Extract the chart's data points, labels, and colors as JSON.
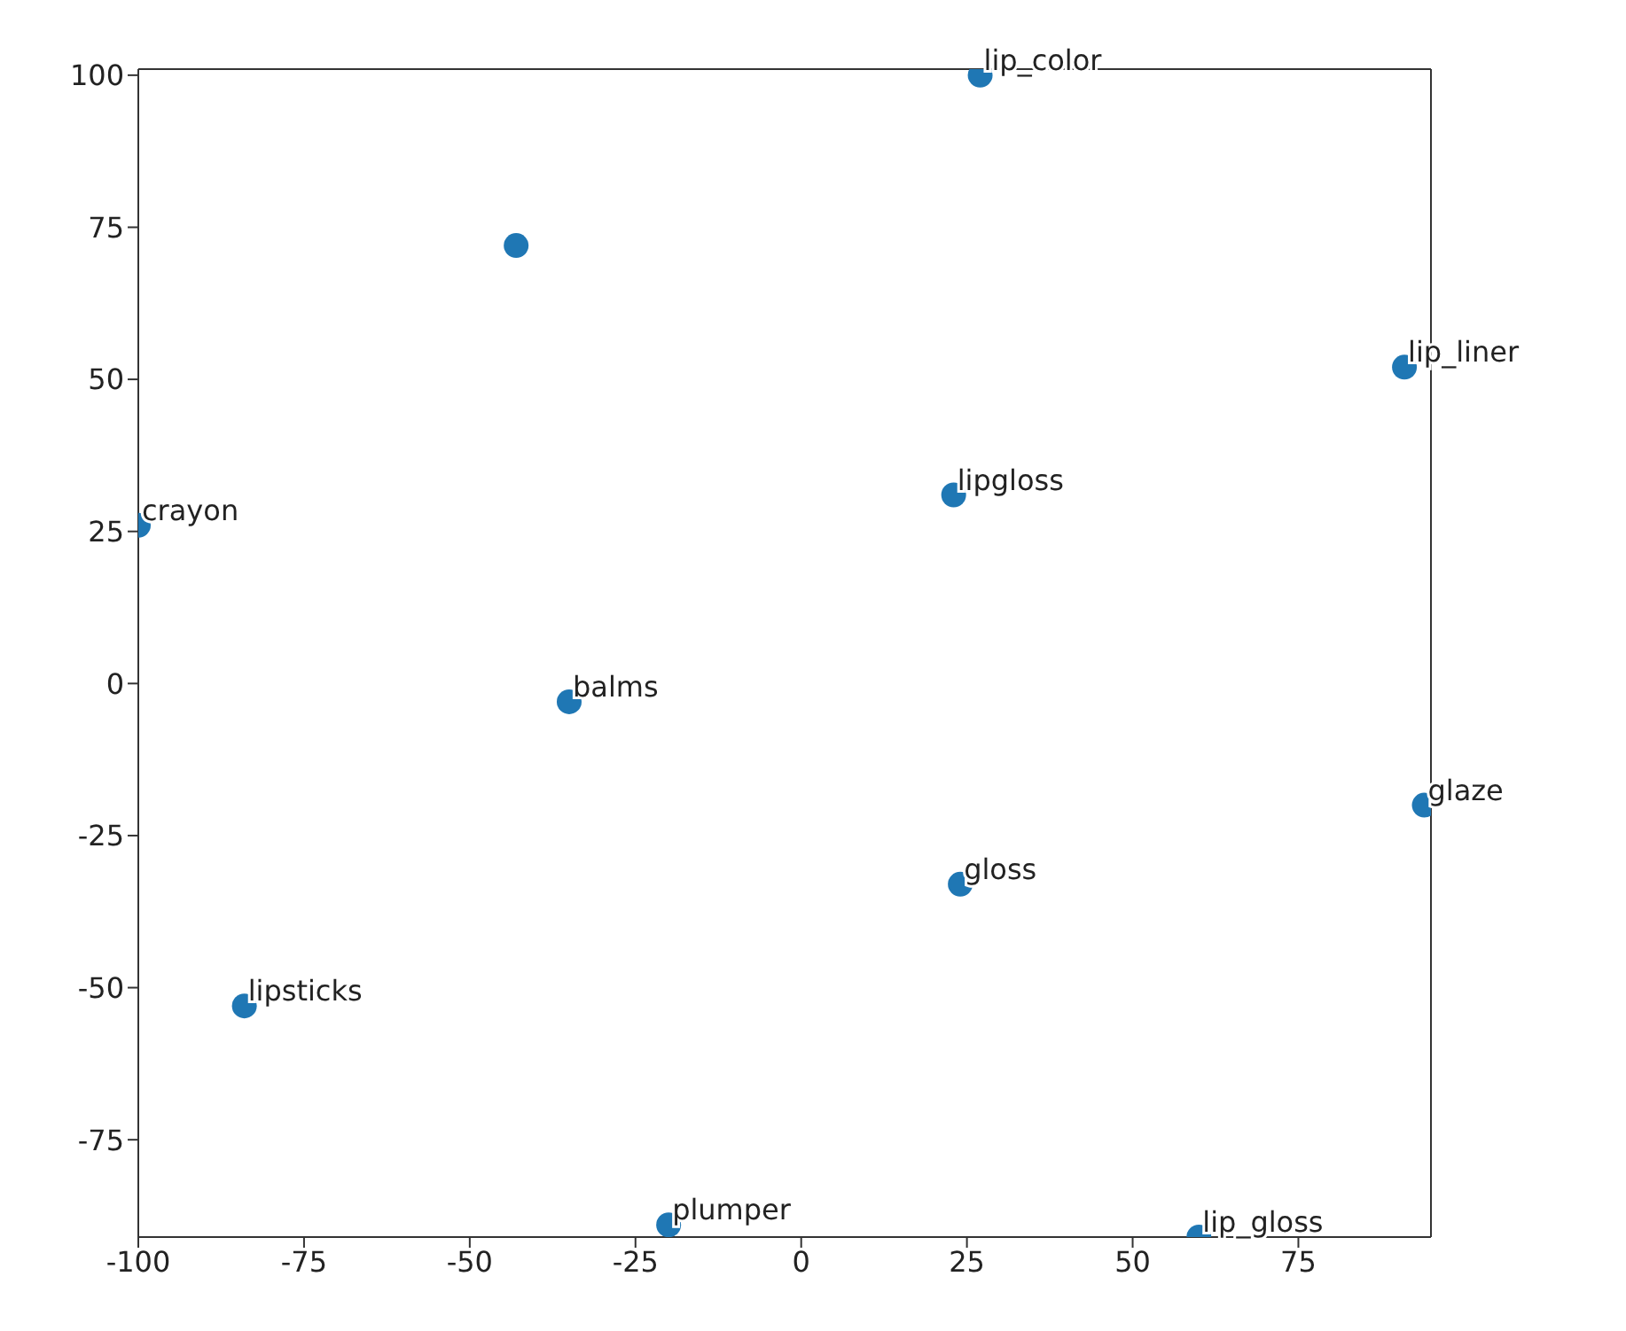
{
  "chart_data": {
    "type": "scatter",
    "color": "#1f77b4",
    "marker": "circle",
    "grid": false,
    "legend": false,
    "x": [
      27,
      -43,
      91,
      23,
      -100,
      -35,
      94,
      24,
      -84,
      -20,
      60
    ],
    "values": [
      100,
      72,
      52,
      31,
      26,
      -3,
      -20,
      -33,
      -53,
      -89,
      -91
    ],
    "xlim": [
      -100,
      95
    ],
    "xticks": [
      -100,
      -75,
      -50,
      -25,
      0,
      25,
      50,
      75
    ],
    "ylim": [
      -91,
      101
    ],
    "yticks": [
      -75,
      -50,
      -25,
      0,
      25,
      50,
      75,
      100
    ],
    "annotations": [
      {
        "text": "lip_color",
        "x": 27,
        "y": 100
      },
      {
        "text": "lip_liner",
        "x": 91,
        "y": 52
      },
      {
        "text": "lipgloss",
        "x": 23,
        "y": 31
      },
      {
        "text": "crayon",
        "x": -100,
        "y": 26
      },
      {
        "text": "balms",
        "x": -35,
        "y": -3
      },
      {
        "text": "glaze",
        "x": 94,
        "y": -20
      },
      {
        "text": "gloss",
        "x": 24,
        "y": -33
      },
      {
        "text": "lipsticks",
        "x": -84,
        "y": -53
      },
      {
        "text": "plumper",
        "x": -20,
        "y": -89
      },
      {
        "text": "lip_gloss",
        "x": 60,
        "y": -91
      }
    ]
  }
}
